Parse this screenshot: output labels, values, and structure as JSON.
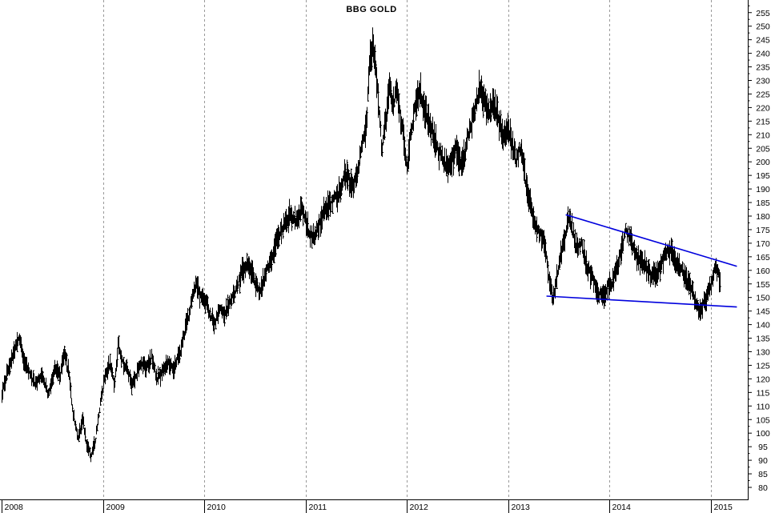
{
  "chart_data": {
    "type": "line",
    "title": "BBG GOLD",
    "xlabel": "",
    "ylabel": "",
    "ylim": [
      78,
      258
    ],
    "grid": "vertical-dashed",
    "y_ticks": [
      "80",
      "85",
      "90",
      "95",
      "100",
      "105",
      "110",
      "115",
      "120",
      "125",
      "130",
      "135",
      "140",
      "145",
      "150",
      "155",
      "160",
      "165",
      "170",
      "175",
      "180",
      "185",
      "190",
      "195",
      "200",
      "205",
      "210",
      "215",
      "220",
      "225",
      "230",
      "235",
      "240",
      "245",
      "250",
      "255"
    ],
    "x_ticks": [
      "2008",
      "2009",
      "2010",
      "2011",
      "2012",
      "2013",
      "2014",
      "2015"
    ],
    "series": [
      {
        "name": "",
        "style": "price-bars",
        "points": [
          [
            2008.0,
            114
          ],
          [
            2008.05,
            122
          ],
          [
            2008.1,
            128
          ],
          [
            2008.17,
            136
          ],
          [
            2008.22,
            126
          ],
          [
            2008.27,
            122
          ],
          [
            2008.33,
            118
          ],
          [
            2008.4,
            122
          ],
          [
            2008.46,
            114
          ],
          [
            2008.52,
            124
          ],
          [
            2008.58,
            122
          ],
          [
            2008.62,
            130
          ],
          [
            2008.66,
            122
          ],
          [
            2008.7,
            108
          ],
          [
            2008.75,
            98
          ],
          [
            2008.8,
            105
          ],
          [
            2008.84,
            95
          ],
          [
            2008.88,
            92
          ],
          [
            2008.92,
            97
          ],
          [
            2008.96,
            108
          ],
          [
            2009.02,
            122
          ],
          [
            2009.07,
            126
          ],
          [
            2009.11,
            118
          ],
          [
            2009.15,
            132
          ],
          [
            2009.19,
            126
          ],
          [
            2009.23,
            124
          ],
          [
            2009.28,
            118
          ],
          [
            2009.33,
            122
          ],
          [
            2009.38,
            126
          ],
          [
            2009.43,
            124
          ],
          [
            2009.48,
            128
          ],
          [
            2009.53,
            120
          ],
          [
            2009.58,
            122
          ],
          [
            2009.64,
            126
          ],
          [
            2009.7,
            124
          ],
          [
            2009.76,
            130
          ],
          [
            2009.82,
            140
          ],
          [
            2009.88,
            150
          ],
          [
            2009.92,
            156
          ],
          [
            2009.96,
            150
          ],
          [
            2010.02,
            148
          ],
          [
            2010.06,
            144
          ],
          [
            2010.1,
            140
          ],
          [
            2010.15,
            146
          ],
          [
            2010.2,
            144
          ],
          [
            2010.25,
            148
          ],
          [
            2010.3,
            152
          ],
          [
            2010.34,
            156
          ],
          [
            2010.38,
            160
          ],
          [
            2010.43,
            162
          ],
          [
            2010.48,
            158
          ],
          [
            2010.54,
            152
          ],
          [
            2010.6,
            158
          ],
          [
            2010.66,
            164
          ],
          [
            2010.72,
            172
          ],
          [
            2010.78,
            176
          ],
          [
            2010.84,
            180
          ],
          [
            2010.9,
            178
          ],
          [
            2010.96,
            182
          ],
          [
            2011.02,
            176
          ],
          [
            2011.06,
            172
          ],
          [
            2011.1,
            174
          ],
          [
            2011.16,
            180
          ],
          [
            2011.22,
            184
          ],
          [
            2011.28,
            186
          ],
          [
            2011.34,
            190
          ],
          [
            2011.4,
            196
          ],
          [
            2011.46,
            190
          ],
          [
            2011.52,
            198
          ],
          [
            2011.56,
            206
          ],
          [
            2011.6,
            215
          ],
          [
            2011.63,
            236
          ],
          [
            2011.66,
            243
          ],
          [
            2011.68,
            238
          ],
          [
            2011.71,
            225
          ],
          [
            2011.75,
            205
          ],
          [
            2011.79,
            215
          ],
          [
            2011.83,
            228
          ],
          [
            2011.86,
            220
          ],
          [
            2011.89,
            228
          ],
          [
            2011.93,
            218
          ],
          [
            2011.97,
            208
          ],
          [
            2012.0,
            198
          ],
          [
            2012.04,
            212
          ],
          [
            2012.09,
            222
          ],
          [
            2012.13,
            226
          ],
          [
            2012.17,
            220
          ],
          [
            2012.22,
            214
          ],
          [
            2012.27,
            208
          ],
          [
            2012.33,
            202
          ],
          [
            2012.38,
            200
          ],
          [
            2012.43,
            198
          ],
          [
            2012.48,
            205
          ],
          [
            2012.52,
            200
          ],
          [
            2012.57,
            203
          ],
          [
            2012.62,
            212
          ],
          [
            2012.67,
            220
          ],
          [
            2012.71,
            226
          ],
          [
            2012.75,
            224
          ],
          [
            2012.8,
            218
          ],
          [
            2012.85,
            222
          ],
          [
            2012.9,
            216
          ],
          [
            2012.95,
            210
          ],
          [
            2013.0,
            212
          ],
          [
            2013.04,
            206
          ],
          [
            2013.08,
            200
          ],
          [
            2013.12,
            206
          ],
          [
            2013.16,
            196
          ],
          [
            2013.19,
            188
          ],
          [
            2013.22,
            184
          ],
          [
            2013.26,
            178
          ],
          [
            2013.31,
            174
          ],
          [
            2013.36,
            170
          ],
          [
            2013.4,
            156
          ],
          [
            2013.44,
            150
          ],
          [
            2013.48,
            158
          ],
          [
            2013.52,
            166
          ],
          [
            2013.56,
            172
          ],
          [
            2013.6,
            180
          ],
          [
            2013.64,
            174
          ],
          [
            2013.68,
            168
          ],
          [
            2013.72,
            170
          ],
          [
            2013.77,
            162
          ],
          [
            2013.82,
            158
          ],
          [
            2013.88,
            152
          ],
          [
            2013.93,
            150
          ],
          [
            2013.98,
            154
          ],
          [
            2014.03,
            156
          ],
          [
            2014.08,
            162
          ],
          [
            2014.12,
            168
          ],
          [
            2014.16,
            174
          ],
          [
            2014.2,
            172
          ],
          [
            2014.25,
            166
          ],
          [
            2014.3,
            164
          ],
          [
            2014.35,
            162
          ],
          [
            2014.41,
            158
          ],
          [
            2014.47,
            158
          ],
          [
            2014.53,
            164
          ],
          [
            2014.58,
            168
          ],
          [
            2014.62,
            166
          ],
          [
            2014.66,
            162
          ],
          [
            2014.71,
            160
          ],
          [
            2014.76,
            156
          ],
          [
            2014.8,
            154
          ],
          [
            2014.85,
            148
          ],
          [
            2014.89,
            144
          ],
          [
            2014.93,
            148
          ],
          [
            2014.98,
            152
          ],
          [
            2015.02,
            158
          ],
          [
            2015.05,
            162
          ],
          [
            2015.08,
            157
          ],
          [
            2015.1,
            154
          ]
        ]
      },
      {
        "name": "",
        "style": "trendline",
        "color": "#0000dd",
        "points": [
          [
            2013.57,
            180.5
          ],
          [
            2015.26,
            161.5
          ]
        ]
      },
      {
        "name": "",
        "style": "trendline",
        "color": "#0000dd",
        "points": [
          [
            2013.38,
            150.5
          ],
          [
            2015.26,
            146.5
          ]
        ]
      }
    ]
  }
}
